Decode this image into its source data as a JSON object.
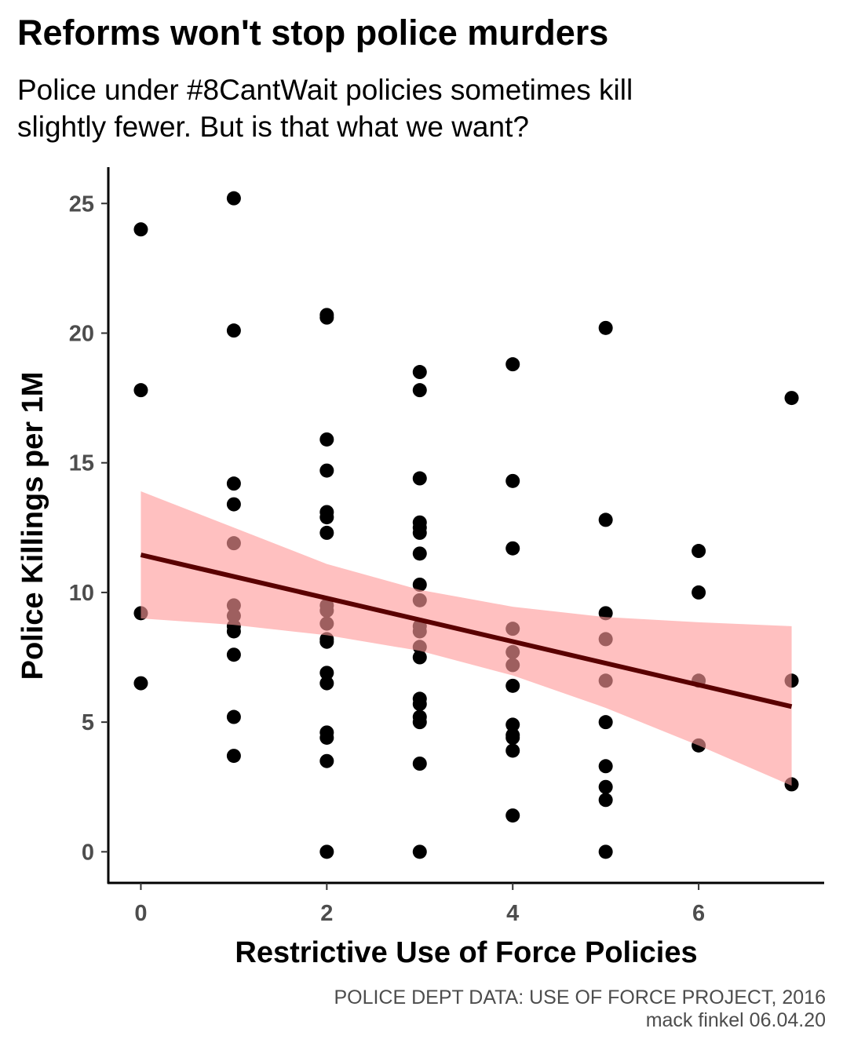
{
  "header": {
    "title": "Reforms won't stop police murders",
    "subtitle_line1": "Police under #8CantWait policies sometimes kill",
    "subtitle_line2": "slightly fewer. But is that what we want?"
  },
  "caption": {
    "line1": "POLICE DEPT DATA: USE OF FORCE PROJECT, 2016",
    "line2": "mack finkel 06.04.20"
  },
  "chart_data": {
    "type": "scatter",
    "title": "Reforms won't stop police murders",
    "subtitle": "Police under #8CantWait policies sometimes kill slightly fewer. But is that what we want?",
    "xlabel": "Restrictive Use of Force Policies",
    "ylabel": "Police Killings per 1M",
    "xlim": [
      -0.35,
      7.35
    ],
    "ylim": [
      -1.2,
      26.4
    ],
    "xticks": [
      "0",
      "2",
      "4",
      "6"
    ],
    "xtick_values": [
      0,
      2,
      4,
      6
    ],
    "yticks": [
      "0",
      "5",
      "10",
      "15",
      "20",
      "25"
    ],
    "ytick_values": [
      0,
      5,
      10,
      15,
      20,
      25
    ],
    "grid": false,
    "legend": "none",
    "point_color": "#000000",
    "trend_color": "#5a0000",
    "band_color": "#ff9999",
    "points": [
      {
        "x": 0,
        "y": 24.0
      },
      {
        "x": 0,
        "y": 17.8
      },
      {
        "x": 0,
        "y": 9.2
      },
      {
        "x": 0,
        "y": 6.5
      },
      {
        "x": 1,
        "y": 25.2
      },
      {
        "x": 1,
        "y": 20.1
      },
      {
        "x": 1,
        "y": 14.2
      },
      {
        "x": 1,
        "y": 13.4
      },
      {
        "x": 1,
        "y": 11.9
      },
      {
        "x": 1,
        "y": 9.5
      },
      {
        "x": 1,
        "y": 9.1
      },
      {
        "x": 1,
        "y": 8.7
      },
      {
        "x": 1,
        "y": 8.5
      },
      {
        "x": 1,
        "y": 7.6
      },
      {
        "x": 1,
        "y": 5.2
      },
      {
        "x": 1,
        "y": 3.7
      },
      {
        "x": 2,
        "y": 20.7
      },
      {
        "x": 2,
        "y": 20.6
      },
      {
        "x": 2,
        "y": 15.9
      },
      {
        "x": 2,
        "y": 14.7
      },
      {
        "x": 2,
        "y": 13.1
      },
      {
        "x": 2,
        "y": 12.9
      },
      {
        "x": 2,
        "y": 12.3
      },
      {
        "x": 2,
        "y": 9.5
      },
      {
        "x": 2,
        "y": 9.3
      },
      {
        "x": 2,
        "y": 8.8
      },
      {
        "x": 2,
        "y": 8.2
      },
      {
        "x": 2,
        "y": 8.1
      },
      {
        "x": 2,
        "y": 6.9
      },
      {
        "x": 2,
        "y": 6.5
      },
      {
        "x": 2,
        "y": 4.6
      },
      {
        "x": 2,
        "y": 4.4
      },
      {
        "x": 2,
        "y": 3.5
      },
      {
        "x": 2,
        "y": 0.0
      },
      {
        "x": 3,
        "y": 18.5
      },
      {
        "x": 3,
        "y": 17.8
      },
      {
        "x": 3,
        "y": 14.4
      },
      {
        "x": 3,
        "y": 12.7
      },
      {
        "x": 3,
        "y": 12.5
      },
      {
        "x": 3,
        "y": 12.3
      },
      {
        "x": 3,
        "y": 11.5
      },
      {
        "x": 3,
        "y": 10.3
      },
      {
        "x": 3,
        "y": 9.7
      },
      {
        "x": 3,
        "y": 8.7
      },
      {
        "x": 3,
        "y": 8.5
      },
      {
        "x": 3,
        "y": 7.9
      },
      {
        "x": 3,
        "y": 7.5
      },
      {
        "x": 3,
        "y": 5.9
      },
      {
        "x": 3,
        "y": 5.7
      },
      {
        "x": 3,
        "y": 5.2
      },
      {
        "x": 3,
        "y": 5.0
      },
      {
        "x": 3,
        "y": 3.4
      },
      {
        "x": 3,
        "y": 0.0
      },
      {
        "x": 4,
        "y": 18.8
      },
      {
        "x": 4,
        "y": 14.3
      },
      {
        "x": 4,
        "y": 11.7
      },
      {
        "x": 4,
        "y": 8.6
      },
      {
        "x": 4,
        "y": 7.7
      },
      {
        "x": 4,
        "y": 7.2
      },
      {
        "x": 4,
        "y": 6.4
      },
      {
        "x": 4,
        "y": 4.9
      },
      {
        "x": 4,
        "y": 4.5
      },
      {
        "x": 4,
        "y": 4.4
      },
      {
        "x": 4,
        "y": 3.9
      },
      {
        "x": 4,
        "y": 1.4
      },
      {
        "x": 5,
        "y": 20.2
      },
      {
        "x": 5,
        "y": 12.8
      },
      {
        "x": 5,
        "y": 9.2
      },
      {
        "x": 5,
        "y": 8.2
      },
      {
        "x": 5,
        "y": 6.6
      },
      {
        "x": 5,
        "y": 5.0
      },
      {
        "x": 5,
        "y": 3.3
      },
      {
        "x": 5,
        "y": 2.5
      },
      {
        "x": 5,
        "y": 2.0
      },
      {
        "x": 5,
        "y": 0.0
      },
      {
        "x": 6,
        "y": 11.6
      },
      {
        "x": 6,
        "y": 10.0
      },
      {
        "x": 6,
        "y": 6.6
      },
      {
        "x": 6,
        "y": 4.1
      },
      {
        "x": 7,
        "y": 17.5
      },
      {
        "x": 7,
        "y": 6.6
      },
      {
        "x": 7,
        "y": 2.6
      }
    ],
    "trend_line": {
      "x": [
        0,
        7
      ],
      "y": [
        11.45,
        5.6
      ]
    },
    "confidence_band": {
      "x": [
        0,
        1,
        2,
        3,
        4,
        5,
        6,
        7
      ],
      "upper": [
        13.9,
        12.5,
        11.1,
        10.1,
        9.45,
        9.05,
        8.85,
        8.7
      ],
      "lower": [
        9.0,
        8.75,
        8.35,
        7.75,
        6.8,
        5.55,
        4.1,
        2.55
      ]
    }
  }
}
